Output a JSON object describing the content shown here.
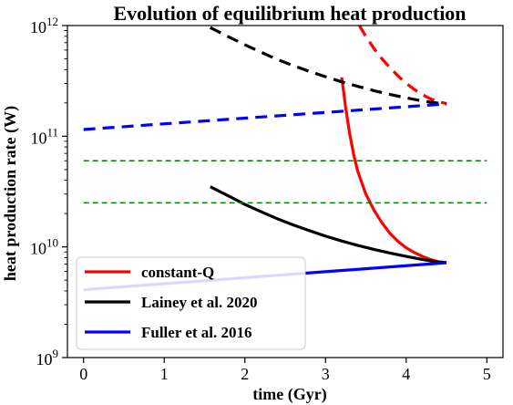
{
  "chart_data": {
    "type": "line",
    "title": "Evolution of equilibrium heat production",
    "xlabel": "time (Gyr)",
    "ylabel": "heat production rate (W)",
    "xlim": [
      -0.2,
      5.2
    ],
    "ylim": [
      1000000000.0,
      1000000000000.0
    ],
    "yscale": "log",
    "grid": false,
    "legend_position": "lower-left",
    "x_ticks": [
      0,
      1,
      2,
      3,
      4,
      5
    ],
    "x_tick_labels": [
      "0",
      "1",
      "2",
      "3",
      "4",
      "5"
    ],
    "y_ticks": [
      1000000000.0,
      10000000000.0,
      100000000000.0,
      1000000000000.0
    ],
    "y_tick_labels": [
      {
        "base": "10",
        "exp": "9"
      },
      {
        "base": "10",
        "exp": "10"
      },
      {
        "base": "10",
        "exp": "11"
      },
      {
        "base": "10",
        "exp": "12"
      }
    ],
    "series": [
      {
        "name": "constant-Q",
        "color": "#ff0000",
        "style": "solid",
        "x": [
          3.2,
          3.22,
          3.25,
          3.3,
          3.35,
          3.4,
          3.5,
          3.6,
          3.7,
          3.8,
          3.9,
          4.0,
          4.1,
          4.2,
          4.3,
          4.4,
          4.5
        ],
        "y": [
          340000000000.0,
          270000000000.0,
          180000000000.0,
          105000000000.0,
          68000000000.0,
          48000000000.0,
          30000000000.0,
          21500000000.0,
          16500000000.0,
          13200000000.0,
          11200000000.0,
          9800000000.0,
          8900000000.0,
          8200000000.0,
          7700000000.0,
          7350000000.0,
          7200000000.0
        ],
        "in_legend": true
      },
      {
        "name": "Lainey et al. 2020",
        "color": "#000000",
        "style": "solid",
        "x": [
          1.57,
          1.8,
          2.0,
          2.2,
          2.4,
          2.6,
          2.8,
          3.0,
          3.2,
          3.4,
          3.6,
          3.8,
          4.0,
          4.2,
          4.4,
          4.5
        ],
        "y": [
          35000000000.0,
          28800000000.0,
          24200000000.0,
          20800000000.0,
          18000000000.0,
          15800000000.0,
          14000000000.0,
          12500000000.0,
          11300000000.0,
          10300000000.0,
          9500000000.0,
          8800000000.0,
          8200000000.0,
          7700000000.0,
          7300000000.0,
          7200000000.0
        ],
        "in_legend": true
      },
      {
        "name": "Fuller et al. 2016",
        "color": "#0000ff",
        "style": "solid",
        "x": [
          0,
          4.5
        ],
        "y": [
          4100000000.0,
          7200000000.0
        ],
        "in_legend": true
      },
      {
        "color": "#ff0000",
        "style": "dashed",
        "x": [
          3.42,
          3.5,
          3.6,
          3.7,
          3.8,
          3.9,
          4.0,
          4.1,
          4.2,
          4.3,
          4.4,
          4.5
        ],
        "y": [
          1000000000000.0,
          800000000000.0,
          620000000000.0,
          500000000000.0,
          415000000000.0,
          350000000000.0,
          300000000000.0,
          265000000000.0,
          238000000000.0,
          218000000000.0,
          205000000000.0,
          197000000000.0
        ],
        "in_legend": false
      },
      {
        "color": "#000000",
        "style": "dashed",
        "x": [
          1.57,
          1.8,
          2.0,
          2.2,
          2.4,
          2.6,
          2.8,
          3.0,
          3.2,
          3.4,
          3.6,
          3.8,
          4.0,
          4.2,
          4.4,
          4.5
        ],
        "y": [
          960000000000.0,
          790000000000.0,
          670000000000.0,
          575000000000.0,
          495000000000.0,
          435000000000.0,
          385000000000.0,
          345000000000.0,
          310000000000.0,
          282000000000.0,
          258000000000.0,
          238000000000.0,
          222000000000.0,
          208000000000.0,
          199000000000.0,
          196000000000.0
        ],
        "in_legend": false
      },
      {
        "color": "#0000ff",
        "style": "dashed",
        "x": [
          0,
          4.5
        ],
        "y": [
          115000000000.0,
          196000000000.0
        ],
        "in_legend": false
      },
      {
        "color": "#008000",
        "style": "dashed-thin",
        "x": [
          0,
          5
        ],
        "y": [
          60000000000.0,
          60000000000.0
        ],
        "in_legend": false
      },
      {
        "color": "#008000",
        "style": "dashed-thin",
        "x": [
          0,
          5
        ],
        "y": [
          25000000000.0,
          25000000000.0
        ],
        "in_legend": false
      }
    ]
  }
}
